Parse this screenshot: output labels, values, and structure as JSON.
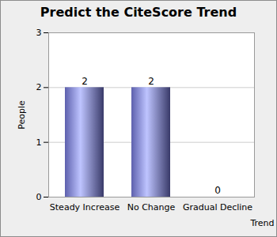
{
  "chart_data": {
    "type": "bar",
    "title": "Predict the CiteScore Trend",
    "x_label": "Trend",
    "y_label": "People",
    "categories": [
      "Steady Increase",
      "No Change",
      "Gradual Decline"
    ],
    "values": [
      2,
      2,
      0
    ],
    "color": "#7c80e6",
    "ylim": [
      0,
      3
    ],
    "yticks": [
      0,
      1,
      2,
      3
    ],
    "grid": true,
    "data_labels": true
  }
}
